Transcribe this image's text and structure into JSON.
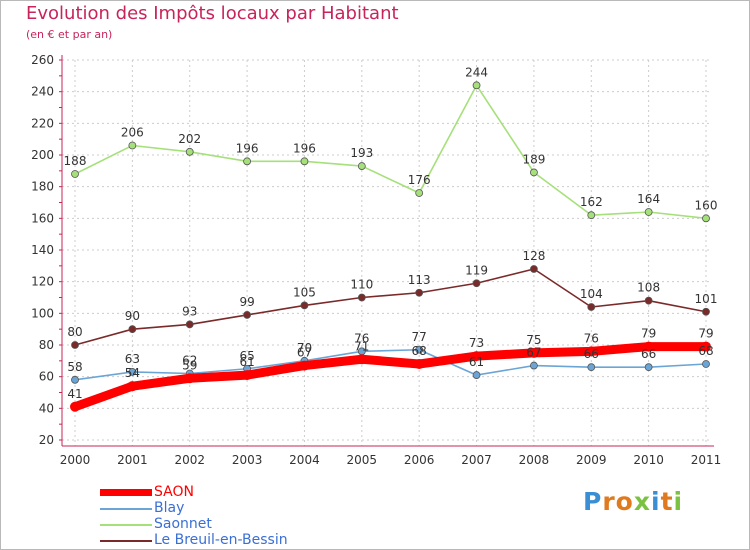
{
  "title": "Evolution des Impôts locaux par Habitant",
  "subtitle": "(en € et par an)",
  "brand": {
    "letters": [
      "P",
      "r",
      "o",
      "x",
      "i",
      "t",
      "i"
    ],
    "colors": [
      "#3a8fd4",
      "#e07a1f",
      "#e07a1f",
      "#7cc242",
      "#3a8fd4",
      "#e07a1f",
      "#7cc242"
    ]
  },
  "chart_data": {
    "type": "line",
    "categories": [
      "2000",
      "2001",
      "2002",
      "2003",
      "2004",
      "2005",
      "2006",
      "2007",
      "2008",
      "2009",
      "2010",
      "2011"
    ],
    "ylim": [
      20,
      260
    ],
    "yticks": [
      "20",
      "40",
      "60",
      "80",
      "100",
      "120",
      "140",
      "160",
      "180",
      "200",
      "220",
      "240",
      "260"
    ],
    "grid": true,
    "legend_position": "bottom-left",
    "series": [
      {
        "name": "SAON",
        "color": "#ff0000",
        "values": [
          41,
          54,
          59,
          61,
          67,
          71,
          68,
          73,
          75,
          76,
          79,
          79
        ],
        "labels": [
          "41",
          "54",
          "59",
          "61",
          "67",
          "71",
          "68",
          "73",
          "75",
          "76",
          "79",
          "79"
        ]
      },
      {
        "name": "Blay",
        "color": "#6ba5d6",
        "values": [
          58,
          63,
          62,
          65,
          70,
          76,
          77,
          61,
          67,
          66,
          66,
          68
        ],
        "labels": [
          "58",
          "63",
          "62",
          "65",
          "70",
          "76",
          "77",
          "61",
          "67",
          "66",
          "66",
          "68"
        ]
      },
      {
        "name": "Saonnet",
        "color": "#a6e07a",
        "values": [
          188,
          206,
          202,
          196,
          196,
          193,
          176,
          244,
          189,
          162,
          164,
          160
        ],
        "labels": [
          "188",
          "206",
          "202",
          "196",
          "196",
          "193",
          "176",
          "244",
          "189",
          "162",
          "164",
          "160"
        ]
      },
      {
        "name": "Le Breuil-en-Bessin",
        "color": "#7b2a2a",
        "values": [
          80,
          90,
          93,
          99,
          105,
          110,
          113,
          119,
          128,
          104,
          108,
          101
        ],
        "labels": [
          "80",
          "90",
          "93",
          "99",
          "105",
          "110",
          "113",
          "119",
          "128",
          "104",
          "108",
          "101"
        ]
      }
    ]
  }
}
